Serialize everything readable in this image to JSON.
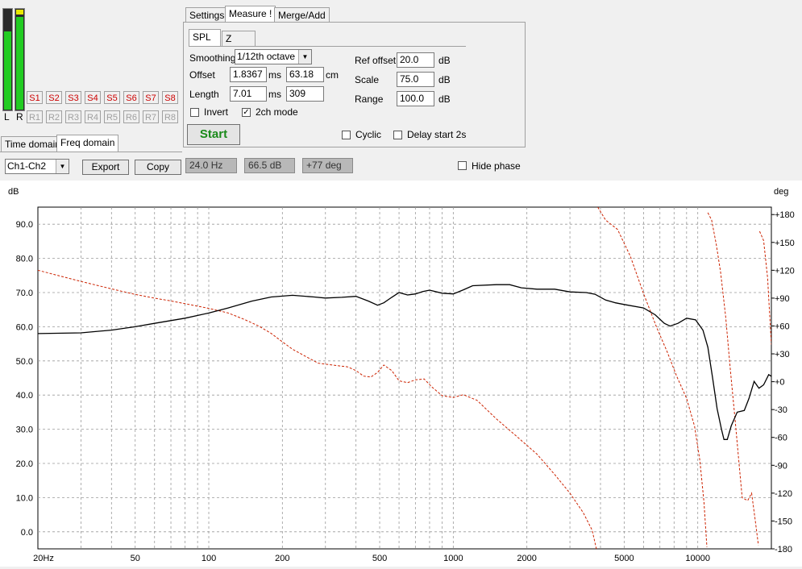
{
  "meters": {
    "left_label": "L",
    "right_label": "R",
    "left_level": 0.78,
    "right_level": 0.93
  },
  "slots": {
    "s": [
      "S1",
      "S2",
      "S3",
      "S4",
      "S5",
      "S6",
      "S7",
      "S8"
    ],
    "r": [
      "R1",
      "R2",
      "R3",
      "R4",
      "R5",
      "R6",
      "R7",
      "R8"
    ]
  },
  "domain_tabs": [
    "Time domain",
    "Freq domain"
  ],
  "main_tabs": [
    "Settings",
    "Measure !",
    "Merge/Add"
  ],
  "sub_tabs": [
    "SPL",
    "Z"
  ],
  "smoothing": {
    "label": "Smoothing",
    "value": "1/12th octave"
  },
  "offset": {
    "label": "Offset",
    "ms": "1.8367",
    "ms_unit": "ms",
    "cm": "63.18",
    "cm_unit": "cm"
  },
  "length": {
    "label": "Length",
    "ms": "7.01",
    "ms_unit": "ms",
    "samples": "309"
  },
  "invert": {
    "label": "Invert",
    "checked": false
  },
  "twoch": {
    "label": "2ch mode",
    "checked": true
  },
  "ref_offset": {
    "label": "Ref offset",
    "value": "20.0",
    "unit": "dB"
  },
  "scale": {
    "label": "Scale",
    "value": "75.0",
    "unit": "dB"
  },
  "range": {
    "label": "Range",
    "value": "100.0",
    "unit": "dB"
  },
  "start_label": "Start",
  "cyclic": {
    "label": "Cyclic",
    "checked": false
  },
  "delay": {
    "label": "Delay start 2s",
    "checked": false
  },
  "toolbar": {
    "channel": "Ch1-Ch2",
    "export_label": "Export",
    "copy_label": "Copy",
    "freq_readout": "24.0 Hz",
    "db_readout": "66.5 dB",
    "phase_readout": "+77 deg",
    "hide_phase": "Hide phase"
  },
  "colors": {
    "spl": "#000000",
    "phase": "#cc2200",
    "grid": "#9a9a9a",
    "start_text": "#1a8a1a",
    "slot_red": "#cc0000"
  },
  "chart_data": {
    "type": "line",
    "x_scale": "log",
    "xlim": [
      20,
      20000
    ],
    "ylim_left": [
      -5,
      95
    ],
    "ylim_right": [
      -180,
      188
    ],
    "ylabel_left": "dB",
    "ylabel_right": "deg",
    "x_tick_labels": [
      {
        "v": 20,
        "t": "20Hz"
      },
      {
        "v": 50,
        "t": "50"
      },
      {
        "v": 100,
        "t": "100"
      },
      {
        "v": 200,
        "t": "200"
      },
      {
        "v": 500,
        "t": "500"
      },
      {
        "v": 1000,
        "t": "1000"
      },
      {
        "v": 2000,
        "t": "2000"
      },
      {
        "v": 5000,
        "t": "5000"
      },
      {
        "v": 10000,
        "t": "10000"
      }
    ],
    "y_ticks_left": [
      "0.0",
      "10.0",
      "20.0",
      "30.0",
      "40.0",
      "50.0",
      "60.0",
      "70.0",
      "80.0",
      "90.0"
    ],
    "y_ticks_right": [
      "-180",
      "-150",
      "-120",
      "-90",
      "-60",
      "-30",
      "+0",
      "+30",
      "+60",
      "+90",
      "+120",
      "+150",
      "+180"
    ],
    "grid": true,
    "series": [
      {
        "style": "solid",
        "axis": "left",
        "points": [
          [
            20,
            58
          ],
          [
            30,
            58.2
          ],
          [
            40,
            59
          ],
          [
            50,
            60
          ],
          [
            60,
            61
          ],
          [
            80,
            62.5
          ],
          [
            100,
            64
          ],
          [
            120,
            65.5
          ],
          [
            150,
            67.5
          ],
          [
            180,
            68.7
          ],
          [
            220,
            69.2
          ],
          [
            270,
            68.7
          ],
          [
            300,
            68.4
          ],
          [
            350,
            68.6
          ],
          [
            400,
            68.9
          ],
          [
            450,
            67.5
          ],
          [
            490,
            66.3
          ],
          [
            520,
            67
          ],
          [
            560,
            68.6
          ],
          [
            600,
            70
          ],
          [
            650,
            69.3
          ],
          [
            700,
            69.6
          ],
          [
            750,
            70.3
          ],
          [
            800,
            70.7
          ],
          [
            900,
            69.8
          ],
          [
            1000,
            69.6
          ],
          [
            1100,
            70.8
          ],
          [
            1200,
            72
          ],
          [
            1500,
            72.3
          ],
          [
            1700,
            72.3
          ],
          [
            1900,
            71.4
          ],
          [
            2200,
            71
          ],
          [
            2600,
            71
          ],
          [
            3000,
            70.2
          ],
          [
            3500,
            70
          ],
          [
            3800,
            69.5
          ],
          [
            4200,
            67.8
          ],
          [
            4600,
            67
          ],
          [
            5000,
            66.5
          ],
          [
            6000,
            65.5
          ],
          [
            6700,
            63.5
          ],
          [
            7300,
            61
          ],
          [
            7700,
            60.2
          ],
          [
            8300,
            61
          ],
          [
            9000,
            62.5
          ],
          [
            9800,
            62
          ],
          [
            10500,
            59
          ],
          [
            11000,
            54
          ],
          [
            11500,
            45
          ],
          [
            12000,
            36
          ],
          [
            12500,
            30
          ],
          [
            12800,
            27
          ],
          [
            13200,
            27
          ],
          [
            13700,
            31
          ],
          [
            14500,
            35
          ],
          [
            15500,
            35.5
          ],
          [
            16200,
            39
          ],
          [
            17000,
            44
          ],
          [
            17800,
            42
          ],
          [
            18600,
            43
          ],
          [
            19500,
            46
          ],
          [
            20000,
            45.5
          ]
        ]
      },
      {
        "style": "dashed",
        "axis": "right",
        "segments": [
          [
            [
              20,
              120
            ],
            [
              30,
              108
            ],
            [
              40,
              100
            ],
            [
              50,
              94
            ],
            [
              60,
              90
            ],
            [
              70,
              87
            ],
            [
              80,
              84
            ],
            [
              100,
              79
            ],
            [
              120,
              74
            ],
            [
              140,
              67
            ],
            [
              160,
              60
            ],
            [
              180,
              52
            ],
            [
              200,
              43
            ],
            [
              220,
              35
            ],
            [
              250,
              27
            ],
            [
              280,
              20
            ],
            [
              320,
              18
            ],
            [
              370,
              16
            ],
            [
              400,
              12
            ],
            [
              430,
              6
            ],
            [
              460,
              5
            ],
            [
              490,
              10
            ],
            [
              520,
              18
            ],
            [
              560,
              12
            ],
            [
              600,
              1
            ],
            [
              650,
              -1
            ],
            [
              700,
              2
            ],
            [
              760,
              3
            ],
            [
              820,
              -6
            ],
            [
              900,
              -15
            ],
            [
              1000,
              -17
            ],
            [
              1100,
              -14
            ],
            [
              1250,
              -20
            ],
            [
              1500,
              -40
            ],
            [
              1800,
              -58
            ],
            [
              2200,
              -78
            ],
            [
              2600,
              -100
            ],
            [
              3000,
              -120
            ],
            [
              3400,
              -141
            ],
            [
              3700,
              -160
            ],
            [
              3850,
              -180
            ]
          ],
          [
            [
              3900,
              188
            ],
            [
              4200,
              174
            ],
            [
              4700,
              164
            ],
            [
              5300,
              135
            ],
            [
              6000,
              95
            ],
            [
              6800,
              58
            ],
            [
              7500,
              32
            ],
            [
              8200,
              6
            ],
            [
              9000,
              -18
            ],
            [
              9700,
              -48
            ],
            [
              10200,
              -85
            ],
            [
              10600,
              -130
            ],
            [
              10900,
              -178
            ]
          ],
          [
            [
              11000,
              182
            ],
            [
              11400,
              174
            ],
            [
              11900,
              148
            ],
            [
              12400,
              118
            ],
            [
              13000,
              70
            ],
            [
              13600,
              12
            ],
            [
              14200,
              -40
            ],
            [
              14800,
              -92
            ],
            [
              15200,
              -125
            ],
            [
              16000,
              -128
            ],
            [
              16600,
              -120
            ],
            [
              17200,
              -150
            ],
            [
              17700,
              -176
            ]
          ],
          [
            [
              17900,
              162
            ],
            [
              18600,
              152
            ],
            [
              19300,
              112
            ],
            [
              20000,
              40
            ]
          ]
        ]
      }
    ]
  }
}
